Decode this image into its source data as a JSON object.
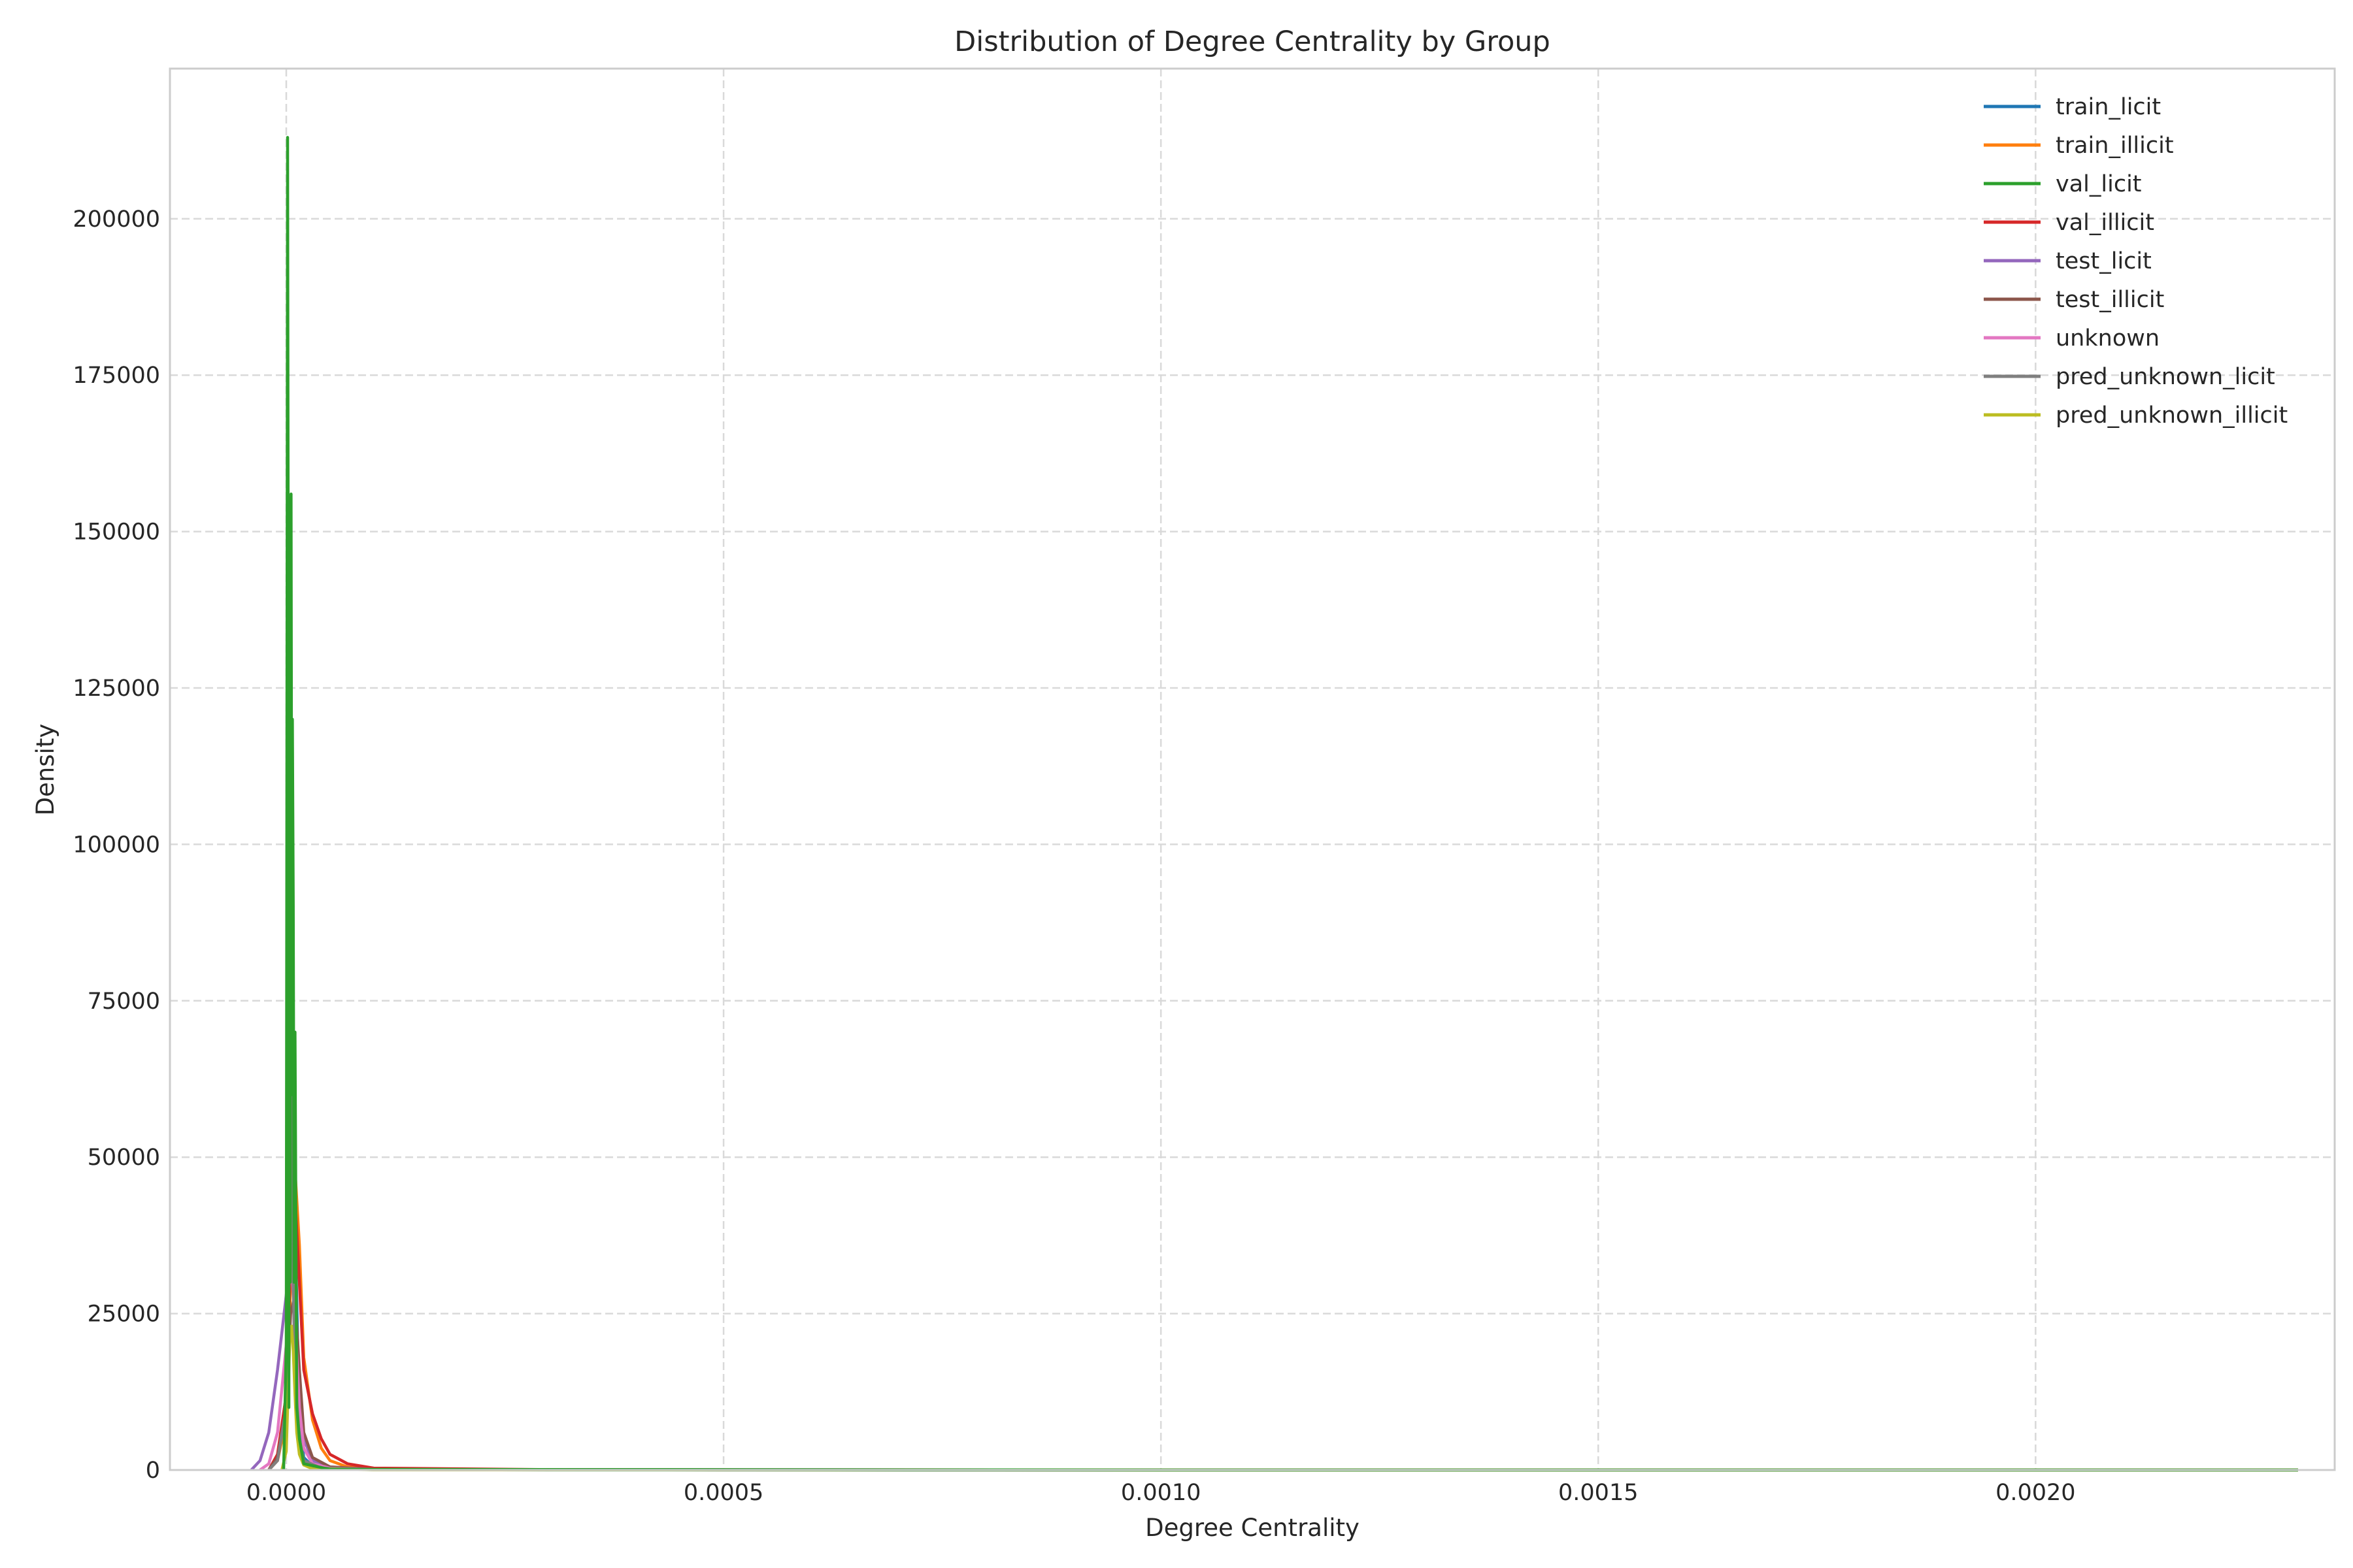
{
  "chart_data": {
    "type": "line",
    "title": "Distribution of Degree Centrality by Group",
    "xlabel": "Degree Centrality",
    "ylabel": "Density",
    "xlim": [
      -0.000133,
      0.002342
    ],
    "ylim": [
      0,
      224000
    ],
    "x_ticks": [
      0.0,
      0.0005,
      0.001,
      0.0015,
      0.002
    ],
    "x_tick_labels": [
      "0.0000",
      "0.0005",
      "0.0010",
      "0.0015",
      "0.0020"
    ],
    "y_ticks": [
      0,
      25000,
      50000,
      75000,
      100000,
      125000,
      150000,
      175000,
      200000
    ],
    "y_tick_labels": [
      "0",
      "25000",
      "50000",
      "75000",
      "100000",
      "125000",
      "150000",
      "175000",
      "200000"
    ],
    "grid": true,
    "legend_position": "top-right",
    "series": [
      {
        "name": "train_licit",
        "color": "#1f77b4",
        "x": [
          -2e-05,
          -1e-05,
          0.0,
          3e-06,
          7e-06,
          1e-05,
          1.5e-05,
          2e-05,
          3e-05,
          5e-05,
          0.0001,
          0.0003,
          0.001,
          0.0023
        ],
        "y": [
          0,
          2000,
          12000,
          40000,
          73000,
          40000,
          8000,
          2000,
          600,
          200,
          50,
          10,
          2,
          0
        ]
      },
      {
        "name": "train_illicit",
        "color": "#ff7f0e",
        "x": [
          -2e-05,
          -1e-05,
          0.0,
          5e-06,
          1e-05,
          1.5e-05,
          2e-05,
          3e-05,
          4e-05,
          5e-05,
          7e-05,
          0.0001,
          0.0003,
          0.0015,
          0.0023
        ],
        "y": [
          0,
          1500,
          8000,
          30000,
          48000,
          36000,
          18000,
          8000,
          3500,
          1500,
          500,
          150,
          30,
          5,
          0
        ]
      },
      {
        "name": "val_licit",
        "color": "#2ca02c",
        "x": [
          -3e-06,
          0.0,
          1.5e-06,
          2.5e-06,
          3e-06,
          3.5e-06,
          4.5e-06,
          5e-06,
          5.5e-06,
          6.5e-06,
          7e-06,
          8e-06,
          9e-06,
          1e-05,
          1.2e-05,
          1.5e-05,
          2e-05,
          5e-05,
          0.001,
          0.0023
        ],
        "y": [
          0,
          20000,
          213000,
          120000,
          10000,
          150000,
          30000,
          140000,
          156000,
          60000,
          120000,
          90000,
          30000,
          70000,
          10000,
          5000,
          1000,
          100,
          2,
          0
        ]
      },
      {
        "name": "val_illicit",
        "color": "#d62728",
        "x": [
          -2e-05,
          -1e-05,
          0.0,
          5e-06,
          1e-05,
          1.5e-05,
          2e-05,
          3e-05,
          4e-05,
          5e-05,
          7e-05,
          0.0001,
          0.0003,
          0.0011,
          0.0023
        ],
        "y": [
          0,
          2500,
          12000,
          33000,
          44000,
          30000,
          16000,
          9000,
          5000,
          2500,
          1000,
          300,
          60,
          10,
          0
        ]
      },
      {
        "name": "test_licit",
        "color": "#9467bd",
        "x": [
          -4e-05,
          -3e-05,
          -2e-05,
          -1e-05,
          0.0,
          5e-06,
          1e-05,
          1.5e-05,
          2e-05,
          3e-05,
          5e-05,
          0.0001,
          0.001,
          0.0023
        ],
        "y": [
          0,
          1500,
          6000,
          16000,
          28000,
          34000,
          25000,
          12000,
          5000,
          1500,
          400,
          80,
          5,
          0
        ]
      },
      {
        "name": "test_illicit",
        "color": "#8c564b",
        "x": [
          -2e-05,
          -1e-05,
          0.0,
          5e-06,
          1e-05,
          1.5e-05,
          2e-05,
          3e-05,
          5e-05,
          0.0001,
          0.0005,
          0.0023
        ],
        "y": [
          0,
          2000,
          10000,
          25000,
          28000,
          16000,
          6000,
          2000,
          500,
          100,
          10,
          0
        ]
      },
      {
        "name": "unknown",
        "color": "#e377c2",
        "x": [
          -3e-05,
          -2e-05,
          -1e-05,
          0.0,
          5e-06,
          1e-05,
          1.5e-05,
          2e-05,
          3e-05,
          5e-05,
          0.0001,
          0.001,
          0.0023
        ],
        "y": [
          0,
          1000,
          6000,
          20000,
          35000,
          24000,
          10000,
          3500,
          1000,
          300,
          60,
          4,
          0
        ]
      },
      {
        "name": "pred_unknown_licit",
        "color": "#7f7f7f",
        "x": [
          -2e-05,
          -1e-05,
          0.0,
          2e-06,
          4e-06,
          6e-06,
          8e-06,
          1e-05,
          1.5e-05,
          2e-05,
          4e-05,
          0.0001,
          0.001,
          0.0023
        ],
        "y": [
          0,
          1500,
          10000,
          40000,
          70000,
          55000,
          30000,
          15000,
          5000,
          1500,
          300,
          50,
          3,
          0
        ]
      },
      {
        "name": "pred_unknown_illicit",
        "color": "#bcbd22",
        "x": [
          -5e-06,
          0.0,
          2e-06,
          4e-06,
          6e-06,
          8e-06,
          1e-05,
          1.2e-05,
          1.5e-05,
          2e-05,
          3e-05,
          0.0001,
          0.001,
          0.0023
        ],
        "y": [
          0,
          3000,
          12000,
          21000,
          23000,
          19000,
          12000,
          6000,
          2500,
          800,
          200,
          40,
          3,
          0
        ]
      }
    ]
  }
}
